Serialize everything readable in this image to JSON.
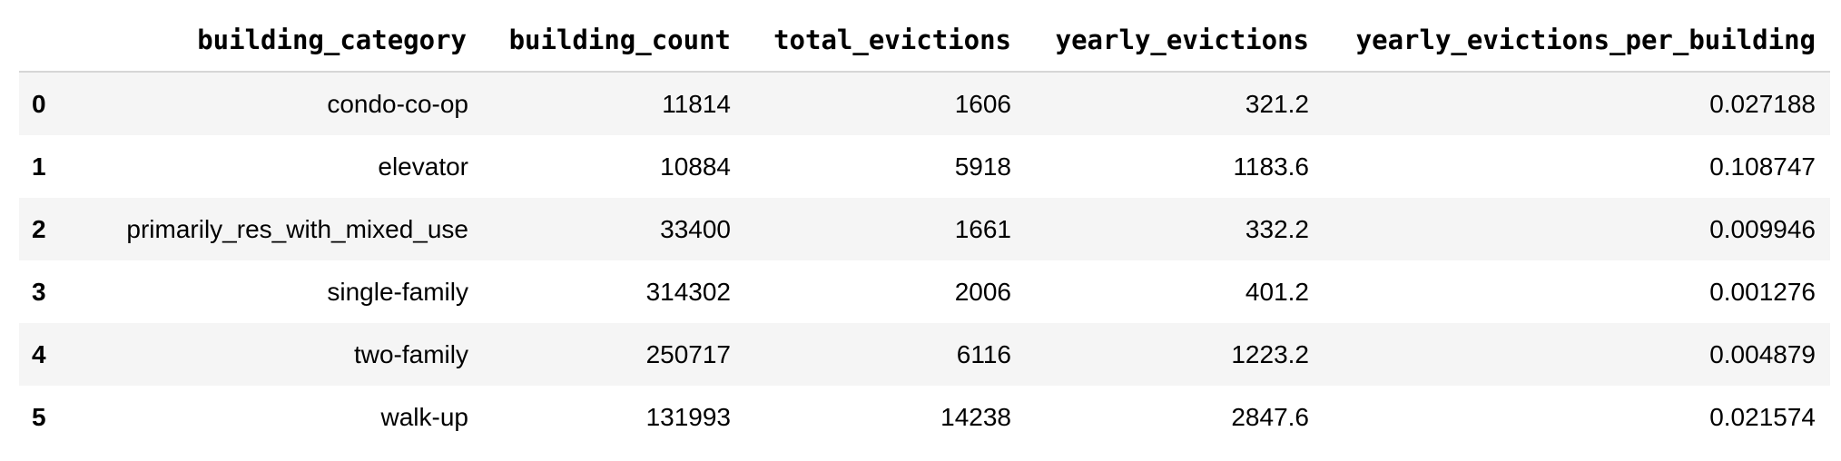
{
  "table": {
    "index_header": "",
    "columns": [
      "building_category",
      "building_count",
      "total_evictions",
      "yearly_evictions",
      "yearly_evictions_per_building"
    ],
    "rows": [
      {
        "index": "0",
        "building_category": "condo-co-op",
        "building_count": "11814",
        "total_evictions": "1606",
        "yearly_evictions": "321.2",
        "yearly_evictions_per_building": "0.027188"
      },
      {
        "index": "1",
        "building_category": "elevator",
        "building_count": "10884",
        "total_evictions": "5918",
        "yearly_evictions": "1183.6",
        "yearly_evictions_per_building": "0.108747"
      },
      {
        "index": "2",
        "building_category": "primarily_res_with_mixed_use",
        "building_count": "33400",
        "total_evictions": "1661",
        "yearly_evictions": "332.2",
        "yearly_evictions_per_building": "0.009946"
      },
      {
        "index": "3",
        "building_category": "single-family",
        "building_count": "314302",
        "total_evictions": "2006",
        "yearly_evictions": "401.2",
        "yearly_evictions_per_building": "0.001276"
      },
      {
        "index": "4",
        "building_category": "two-family",
        "building_count": "250717",
        "total_evictions": "6116",
        "yearly_evictions": "1223.2",
        "yearly_evictions_per_building": "0.004879"
      },
      {
        "index": "5",
        "building_category": "walk-up",
        "building_count": "131993",
        "total_evictions": "14238",
        "yearly_evictions": "2847.6",
        "yearly_evictions_per_building": "0.021574"
      }
    ]
  },
  "colors": {
    "stripe": "#f5f5f5",
    "header_rule": "#d6d6d6",
    "text": "#000000"
  }
}
